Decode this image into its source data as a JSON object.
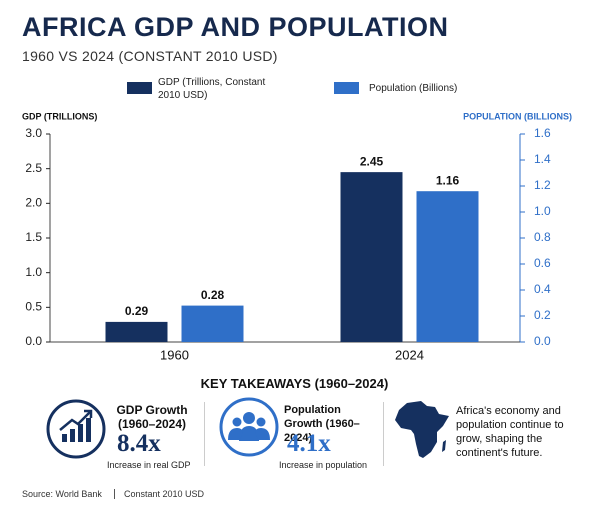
{
  "chart_data": {
    "type": "bar",
    "title": "AFRICA GDP AND POPULATION",
    "subtitle": "1960 VS 2024 (CONSTANT 2010 USD)",
    "y_label": "GDP (TRILLIONS)",
    "y2_label": "POPULATION (BILLIONS)",
    "categories": [
      "1960",
      "2024"
    ],
    "series": [
      {
        "name": "GDP (Trillions, Constant 2010 USD)",
        "color": "#15305f",
        "values": [
          0.29,
          2.45
        ]
      },
      {
        "name": "Population (Billions)",
        "color": "#2f6fc8",
        "values": [
          0.28,
          1.16
        ],
        "axis": "y2"
      }
    ],
    "ylim": [
      0,
      3
    ],
    "yticks": [
      {
        "value": 0,
        "label": "0.0"
      },
      0.5,
      {
        "value": 1,
        "label": "1.0"
      },
      1.5,
      {
        "value": 2,
        "label": "2.0"
      },
      2.5,
      {
        "value": 3,
        "label": "3.0"
      }
    ],
    "y2lim": [
      0,
      1.6
    ],
    "y2ticks": [
      {
        "value": 0,
        "label": "0.0"
      },
      0.2,
      0.4,
      0.6,
      0.8,
      {
        "value": 1,
        "label": "1.0"
      },
      1.2,
      1.4,
      1.6
    ],
    "y2color": "#2f6fc8",
    "grid": false
  },
  "takeaways": {
    "heading": "KEY TAKEAWAYS (1960–2024)",
    "cards": [
      {
        "title": "GDP Growth (1960–2024)",
        "value": "8.4x",
        "caption": "Increase in real GDP"
      },
      {
        "title": "Population Growth (1960–2024)",
        "value": "4.1x",
        "caption": "Increase in population"
      }
    ],
    "note": "Africa's economy and population continue to grow, shaping the continent's future."
  },
  "footer": {
    "source": "Source: World Bank",
    "basis": "Constant 2010 USD"
  }
}
